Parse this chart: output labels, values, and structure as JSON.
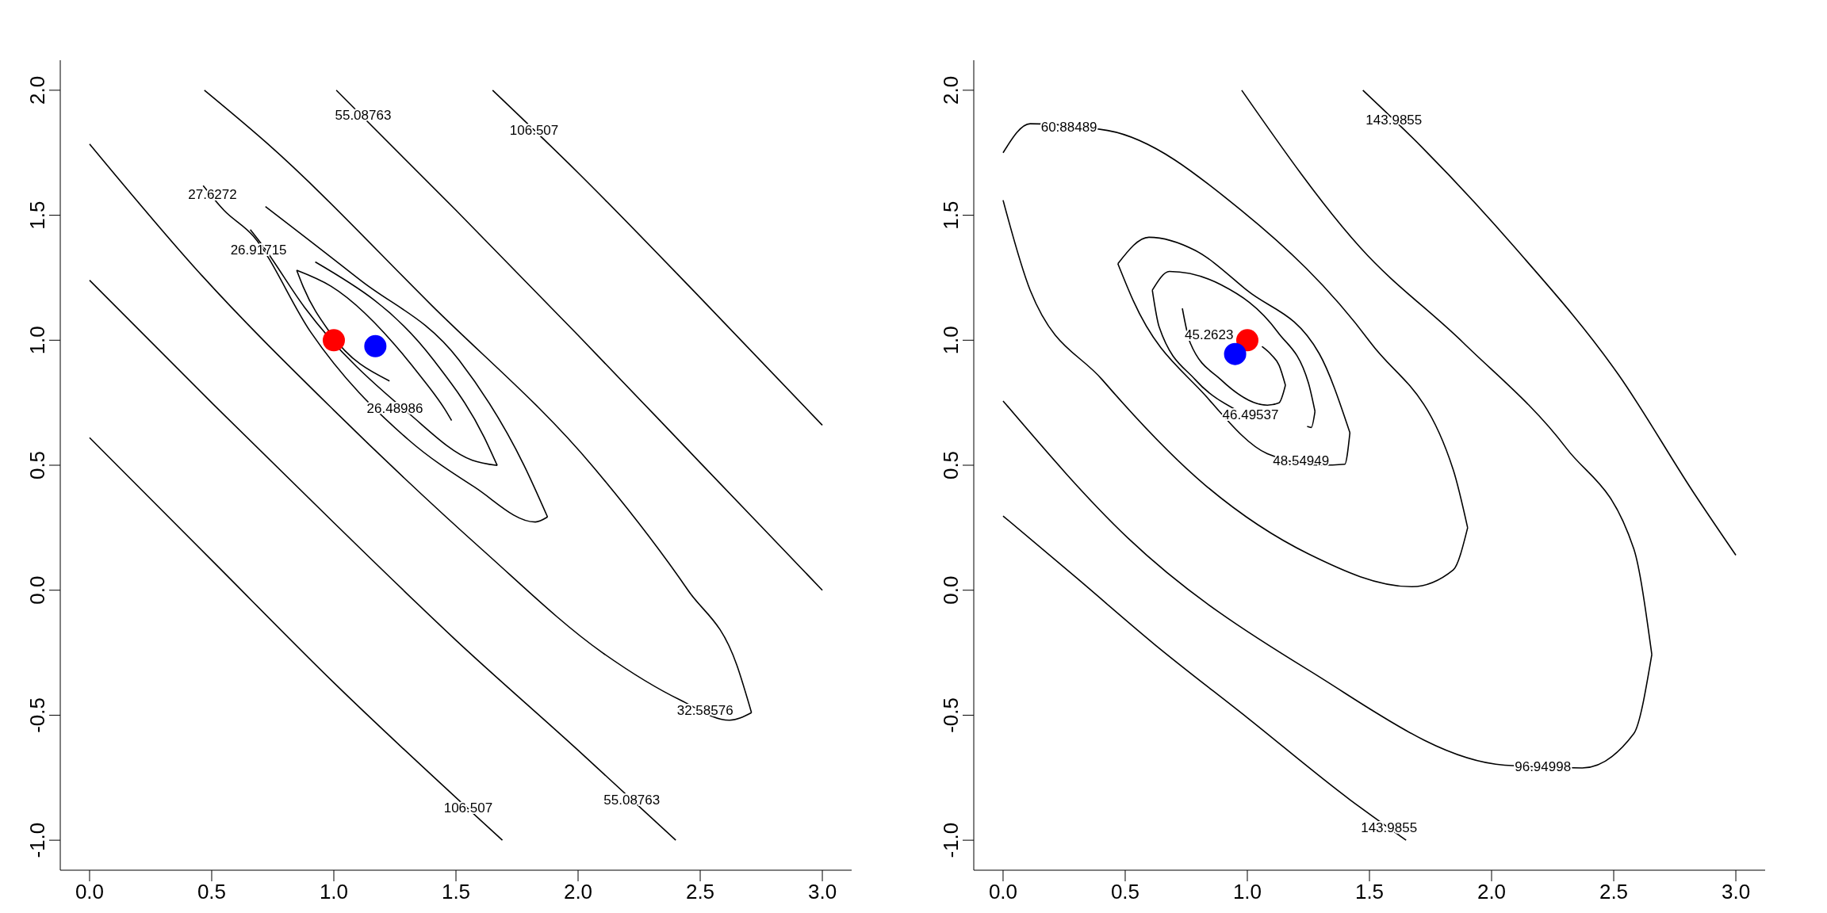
{
  "chart_data": [
    {
      "type": "line",
      "xlim": [
        -0.12,
        3.12
      ],
      "ylim": [
        -1.12,
        2.12
      ],
      "xticks": [
        {
          "value": 0,
          "label": "0.0"
        },
        {
          "value": 0.5,
          "label": "0.5"
        },
        {
          "value": 1,
          "label": "1.0"
        },
        {
          "value": 1.5,
          "label": "1.5"
        },
        {
          "value": 2,
          "label": "2.0"
        },
        {
          "value": 2.5,
          "label": "2.5"
        },
        {
          "value": 3,
          "label": "3.0"
        }
      ],
      "yticks": [
        {
          "value": -1,
          "label": "-1.0"
        },
        {
          "value": -0.5,
          "label": "-0.5"
        },
        {
          "value": 0,
          "label": "0.0"
        },
        {
          "value": 0.5,
          "label": "0.5"
        },
        {
          "value": 1,
          "label": "1.0"
        },
        {
          "value": 1.5,
          "label": "1.5"
        },
        {
          "value": 2,
          "label": "2.0"
        }
      ],
      "series": [
        {
          "color": "#000000",
          "x": [
            1.65,
            2.0,
            2.5,
            3.0
          ],
          "values": [
            2.0,
            1.67,
            1.17,
            0.66
          ]
        },
        {
          "color": "#000000",
          "x": [
            1.01,
            1.5,
            2.0,
            2.5,
            3.0
          ],
          "values": [
            2.0,
            1.52,
            1.02,
            0.51,
            0.0
          ]
        },
        {
          "color": "#000000",
          "x": [
            0,
            0.5,
            1.0,
            1.69
          ],
          "values": [
            0.61,
            0.12,
            -0.37,
            -1.0
          ]
        },
        {
          "color": "#000000",
          "x": [
            0,
            0.5,
            1.0,
            1.5,
            2.0,
            2.4
          ],
          "values": [
            1.24,
            0.75,
            0.27,
            -0.2,
            -0.64,
            -1.0
          ]
        },
        {
          "color": "#000000",
          "x": [
            0,
            0.44,
            1.0,
            1.61,
            2.1,
            2.42,
            2.62,
            2.71
          ],
          "values": [
            1.785,
            1.28,
            0.72,
            0.16,
            -0.25,
            -0.44,
            -0.52,
            -0.49
          ]
        },
        {
          "color": "#000000",
          "x": [
            0.47,
            0.73,
            1.4,
            2.065,
            2.45,
            2.65,
            2.71
          ],
          "values": [
            2.0,
            1.785,
            1.14,
            0.49,
            0.0,
            -0.3,
            -0.49
          ]
        },
        {
          "color": "#000000",
          "x": [
            0.72,
            1.105,
            1.513,
            1.779,
            1.875
          ],
          "values": [
            1.535,
            1.243,
            0.92,
            0.499,
            0.293
          ]
        },
        {
          "color": "#000000",
          "x": [
            0.465,
            0.55,
            0.67,
            0.905,
            1.304,
            1.575,
            1.825,
            1.875
          ],
          "values": [
            1.618,
            1.52,
            1.417,
            1.033,
            0.603,
            0.413,
            0.273,
            0.293
          ]
        },
        {
          "color": "#000000",
          "x": [
            0.924,
            1.409,
            1.615,
            1.669
          ],
          "values": [
            1.313,
            0.92,
            0.613,
            0.499
          ]
        },
        {
          "color": "#000000",
          "x": [
            0.658,
            0.705,
            0.88,
            1.304,
            1.567,
            1.669
          ],
          "values": [
            1.442,
            1.383,
            1.132,
            0.71,
            0.52,
            0.499
          ]
        },
        {
          "color": "#000000",
          "x": [
            0.848,
            0.987,
            1.355,
            1.455,
            1.482
          ],
          "values": [
            1.28,
            1.217,
            0.856,
            0.723,
            0.679
          ]
        },
        {
          "color": "#000000",
          "x": [
            0.848,
            0.875,
            0.987,
            1.228
          ],
          "values": [
            1.28,
            1.213,
            1.027,
            0.837
          ]
        },
        {
          "type": "scatter",
          "color": "#ff0000",
          "marker": "circle",
          "x": [
            1.0
          ],
          "values": [
            1.0
          ]
        },
        {
          "type": "scatter",
          "color": "#0000ff",
          "marker": "circle",
          "x": [
            1.17
          ],
          "values": [
            0.976
          ]
        }
      ],
      "annotations": [
        {
          "text": "55.08763",
          "x": 1.12,
          "y": 1.9
        },
        {
          "text": "106.507",
          "x": 1.82,
          "y": 1.84
        },
        {
          "text": "27.6272",
          "x": 0.72,
          "y": 1.535
        },
        {
          "text": "26.91715",
          "x": 0.924,
          "y": 1.313
        },
        {
          "text": "26.48986",
          "x": 1.482,
          "y": 0.679
        },
        {
          "text": "32.58576",
          "x": 2.52,
          "y": -0.48
        },
        {
          "text": "106.507",
          "x": 1.55,
          "y": -0.872
        },
        {
          "text": "55.08763",
          "x": 2.22,
          "y": -0.838
        }
      ]
    },
    {
      "type": "line",
      "xlim": [
        -0.12,
        3.12
      ],
      "ylim": [
        -1.12,
        2.12
      ],
      "xticks": [
        {
          "value": 0,
          "label": "0.0"
        },
        {
          "value": 0.5,
          "label": "0.5"
        },
        {
          "value": 1,
          "label": "1.0"
        },
        {
          "value": 1.5,
          "label": "1.5"
        },
        {
          "value": 2,
          "label": "2.0"
        },
        {
          "value": 2.5,
          "label": "2.5"
        },
        {
          "value": 3,
          "label": "3.0"
        }
      ],
      "yticks": [
        {
          "value": -1,
          "label": "-1.0"
        },
        {
          "value": -0.5,
          "label": "-0.5"
        },
        {
          "value": 0,
          "label": "0.0"
        },
        {
          "value": 0.5,
          "label": "0.5"
        },
        {
          "value": 1,
          "label": "1.0"
        },
        {
          "value": 1.5,
          "label": "1.5"
        },
        {
          "value": 2,
          "label": "2.0"
        }
      ],
      "series": [
        {
          "color": "#000000",
          "x": [
            1.06,
            1.1,
            1.13,
            1.156
          ],
          "values": [
            0.975,
            0.94,
            0.9,
            0.82
          ]
        },
        {
          "color": "#000000",
          "x": [
            0.734,
            0.766,
            0.892,
            1.082,
            1.13,
            1.156
          ],
          "values": [
            1.127,
            0.99,
            0.842,
            0.74,
            0.75,
            0.82
          ]
        },
        {
          "color": "#000000",
          "x": [
            0.611,
            0.681,
            0.892,
            1.125,
            1.25,
            1.277
          ],
          "values": [
            1.2,
            1.275,
            1.222,
            1.032,
            0.83,
            0.715
          ]
        },
        {
          "color": "#000000",
          "x": [
            0.611,
            0.639,
            0.787,
            0.957
          ],
          "values": [
            1.2,
            1.053,
            0.842,
            0.72
          ]
        },
        {
          "color": "#000000",
          "x": [
            1.245,
            1.262,
            1.277
          ],
          "values": [
            0.655,
            0.651,
            0.715
          ]
        },
        {
          "color": "#000000",
          "x": [
            0.47,
            0.597,
            0.787,
            0.998,
            1.294,
            1.42
          ],
          "values": [
            1.306,
            1.412,
            1.359,
            1.2,
            0.947,
            0.63
          ]
        },
        {
          "color": "#000000",
          "x": [
            0.47,
            0.533,
            0.829,
            1.082,
            1.3,
            1.399,
            1.42
          ],
          "values": [
            1.306,
            1.158,
            0.778,
            0.546,
            0.5,
            0.504,
            0.63
          ]
        },
        {
          "color": "#000000",
          "x": [
            0,
            0.111,
            0.428,
            0.977,
            1.505,
            1.843,
            1.902
          ],
          "values": [
            1.75,
            1.866,
            1.839,
            1.518,
            0.99,
            0.482,
            0.25
          ]
        },
        {
          "color": "#000000",
          "x": [
            0,
            0.111,
            0.406,
            0.829,
            1.251,
            1.674,
            1.843,
            1.902
          ],
          "values": [
            1.56,
            1.2,
            0.842,
            0.419,
            0.145,
            0.014,
            0.081,
            0.25
          ]
        },
        {
          "color": "#000000",
          "x": [
            0,
            0.512,
            1.251,
            2.054,
            2.371,
            2.582,
            2.656
          ],
          "values": [
            0.757,
            0.208,
            -0.32,
            -0.7,
            -0.711,
            -0.574,
            -0.257
          ]
        },
        {
          "color": "#000000",
          "x": [
            0.977,
            1.463,
            1.885,
            2.307,
            2.582,
            2.656
          ],
          "values": [
            2.0,
            1.37,
            0.989,
            0.567,
            0.166,
            -0.257
          ]
        },
        {
          "color": "#000000",
          "x": [
            0,
            0.3,
            0.618,
            1.0,
            1.42,
            1.65
          ],
          "values": [
            0.297,
            0.05,
            -0.215,
            -0.51,
            -0.838,
            -1.0
          ]
        },
        {
          "color": "#000000",
          "x": [
            1.473,
            1.716,
            2.096,
            2.519,
            2.836,
            3.0
          ],
          "values": [
            2.0,
            1.771,
            1.37,
            0.863,
            0.377,
            0.14
          ]
        },
        {
          "type": "scatter",
          "color": "#ff0000",
          "marker": "circle",
          "x": [
            1.0
          ],
          "values": [
            1.0
          ]
        },
        {
          "type": "scatter",
          "color": "#0000ff",
          "marker": "circle",
          "x": [
            0.95
          ],
          "values": [
            0.945
          ]
        }
      ],
      "annotations": [
        {
          "text": "60.88489",
          "x": 0.27,
          "y": 1.852
        },
        {
          "text": "143.9855",
          "x": 1.6,
          "y": 1.88
        },
        {
          "text": "45.2623",
          "x": 1.06,
          "y": 0.975
        },
        {
          "text": "46.49537",
          "x": 1.245,
          "y": 0.655
        },
        {
          "text": "48.54949",
          "x": 1.22,
          "y": 0.517
        },
        {
          "text": "96.94998",
          "x": 2.21,
          "y": -0.705
        },
        {
          "text": "143.9855",
          "x": 1.58,
          "y": -0.951
        }
      ]
    }
  ]
}
